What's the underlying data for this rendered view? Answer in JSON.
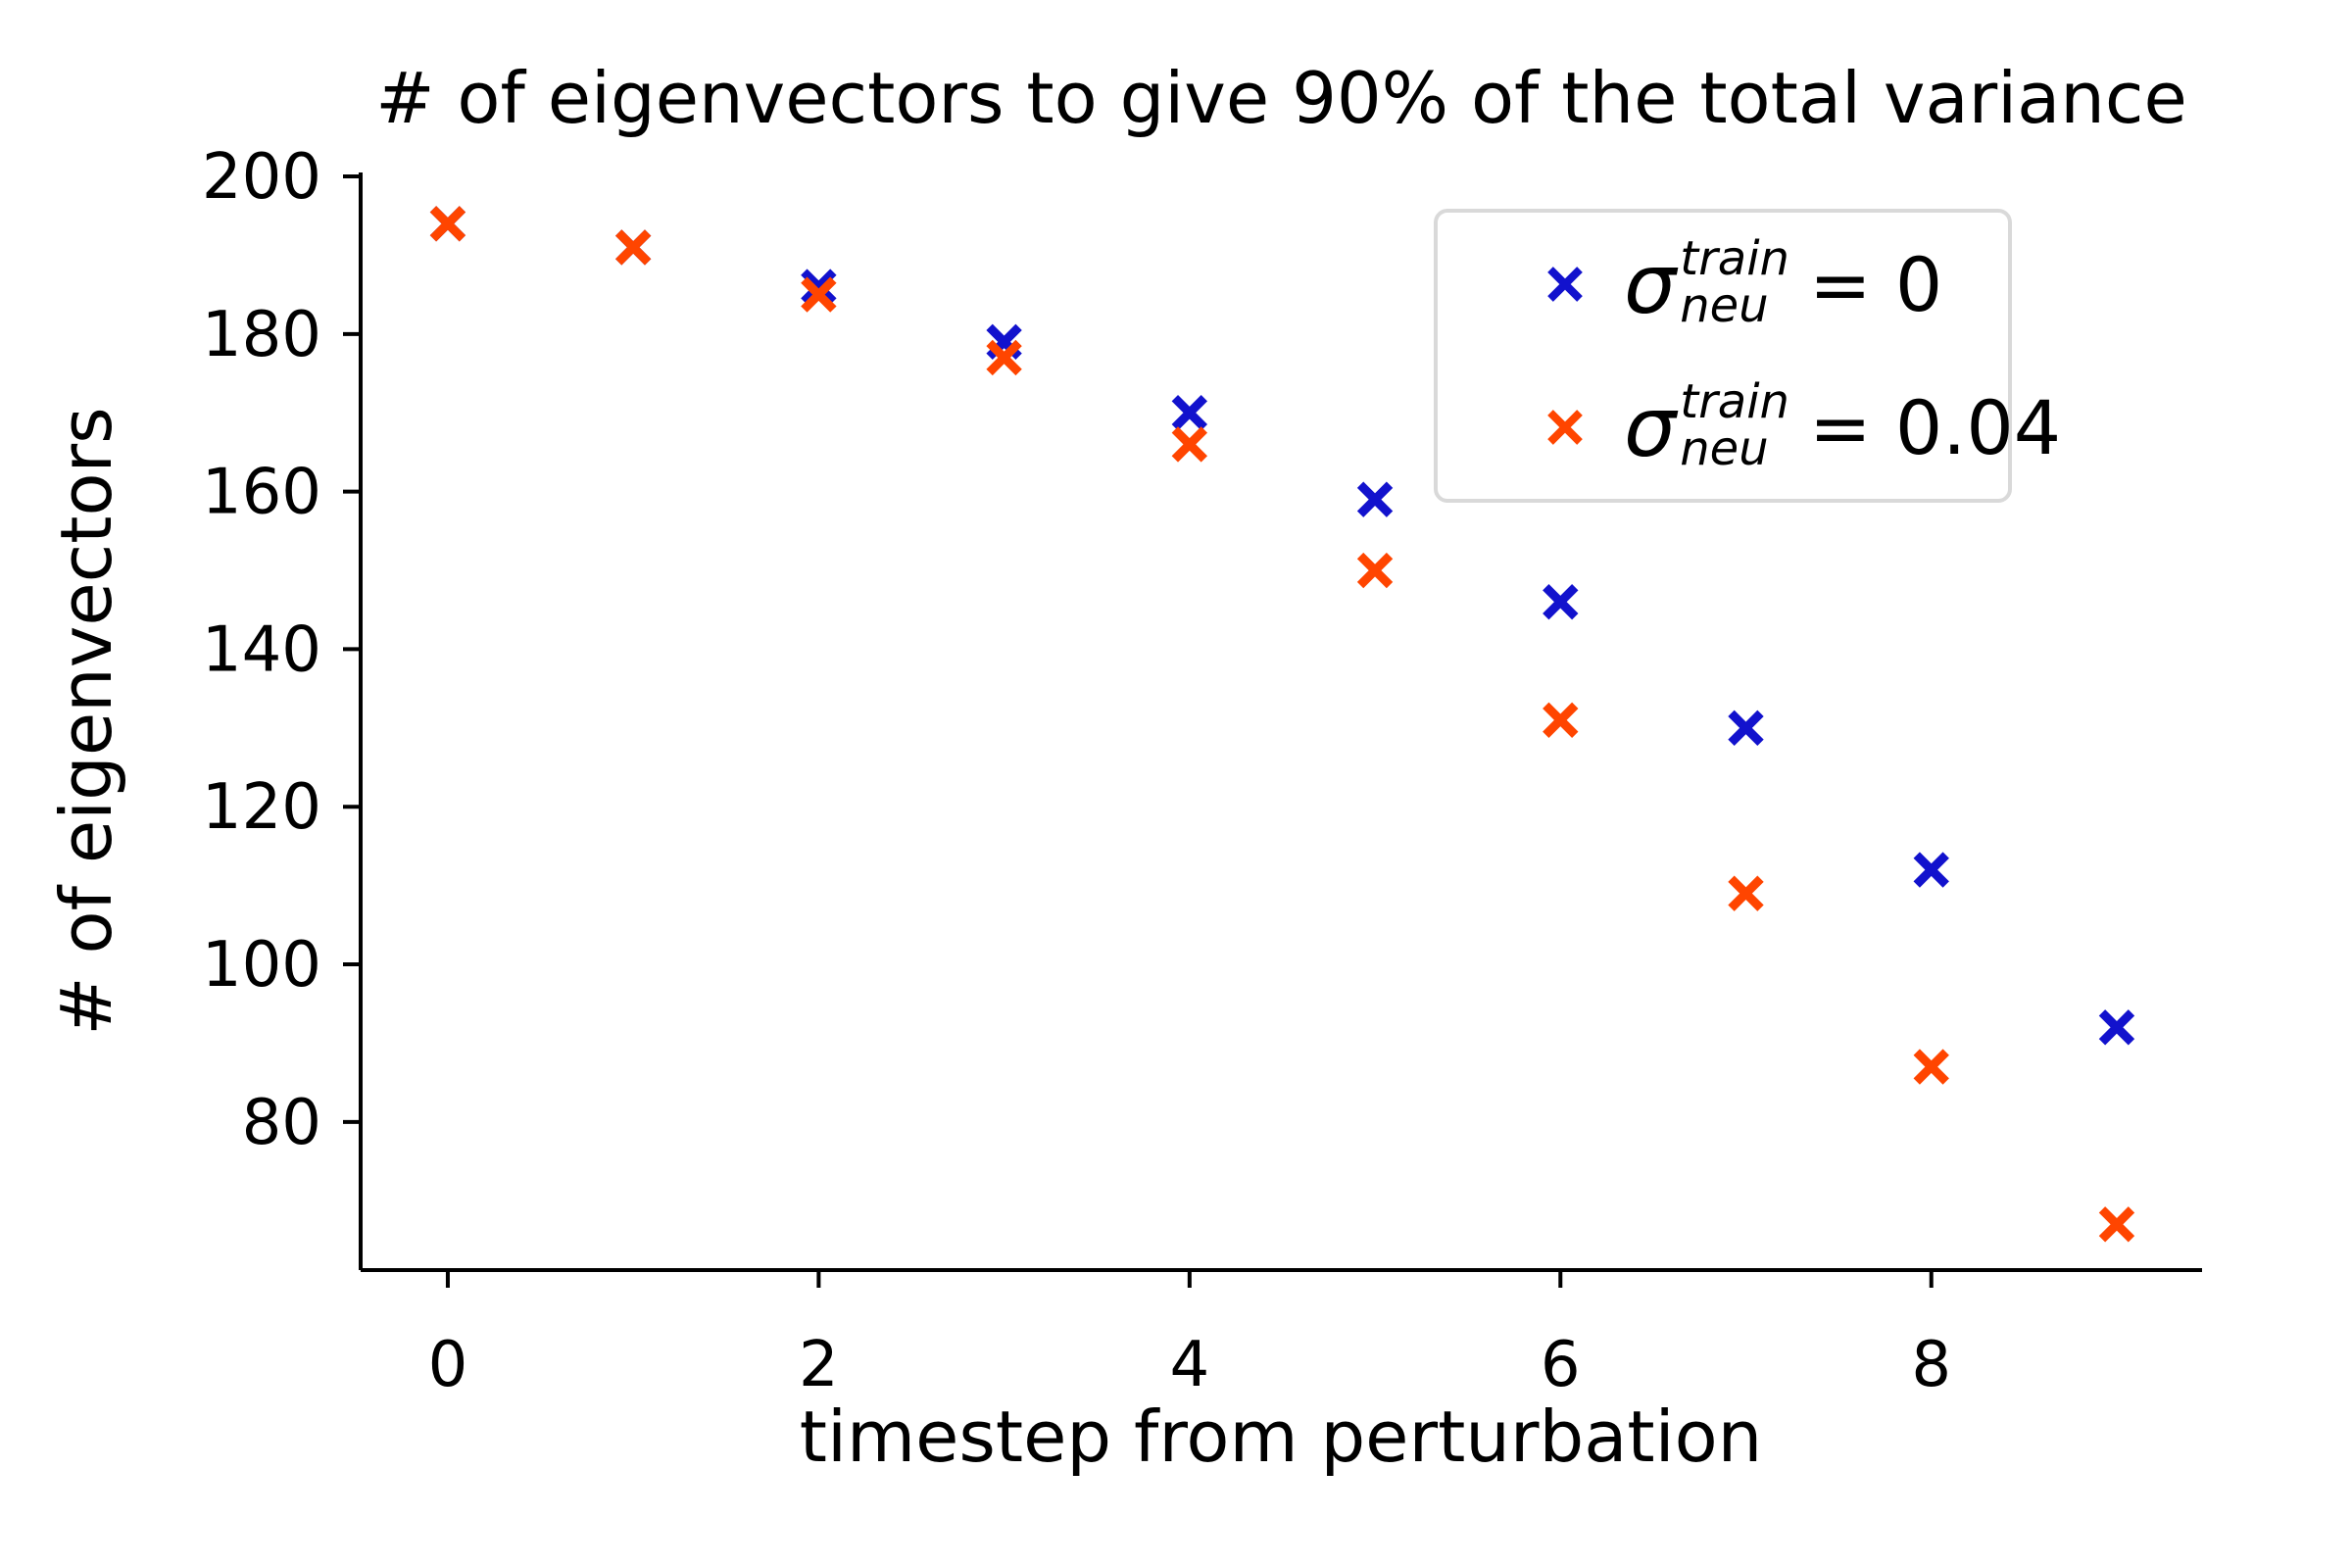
{
  "chart_data": {
    "type": "scatter",
    "title": "# of eigenvectors to give 90% of the total variance",
    "xlabel": "timestep from perturbation",
    "ylabel": "# of eigenvectors",
    "x": [
      0,
      1,
      2,
      3,
      4,
      5,
      6,
      7,
      8,
      9
    ],
    "series": [
      {
        "name": "sigma_neu_train = 0",
        "marker": "x",
        "color": "#1212CD",
        "values": [
          194,
          191,
          186,
          179,
          170,
          159,
          146,
          130,
          112,
          92
        ]
      },
      {
        "name": "sigma_neu_train = 0.04",
        "marker": "x",
        "color": "#FF4500",
        "values": [
          194,
          191,
          185,
          177,
          166,
          150,
          131,
          109,
          87,
          67
        ]
      }
    ],
    "xticks": [
      0,
      2,
      4,
      6,
      8
    ],
    "yticks": [
      80,
      100,
      120,
      140,
      160,
      180,
      200
    ],
    "xlim": [
      -0.47,
      9.46
    ],
    "ylim": [
      61.2,
      200.5
    ],
    "grid": false,
    "legend_position": "upper right"
  },
  "legend": {
    "entries": [
      {
        "sigma": "σ",
        "sup": "train",
        "sub": "neu",
        "rhs": "= 0"
      },
      {
        "sigma": "σ",
        "sup": "train",
        "sub": "neu",
        "rhs": "= 0.04"
      }
    ]
  }
}
